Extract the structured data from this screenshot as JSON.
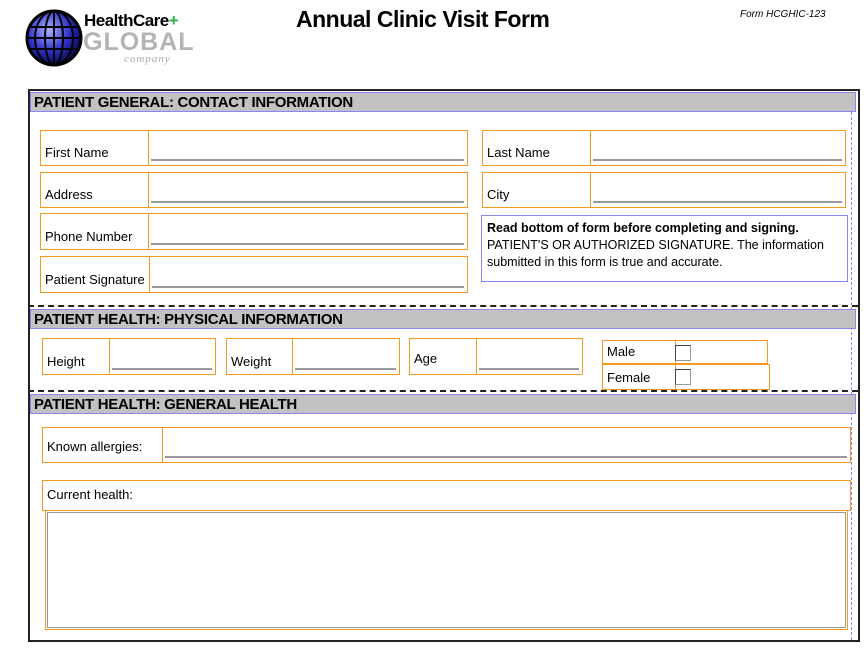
{
  "header": {
    "title": "Annual Clinic Visit Form",
    "form_number": "Form HCGHIC-123",
    "logo": {
      "line1": "HealthCare",
      "plus": "+",
      "line2": "GLOBAL",
      "line3": "company"
    }
  },
  "sections": {
    "contact": {
      "title": "PATIENT GENERAL: CONTACT INFORMATION",
      "first_name": "First Name",
      "last_name": "Last Name",
      "address": "Address",
      "city": "City",
      "phone": "Phone Number",
      "signature": "Patient Signature",
      "note_bold": "Read bottom of form before completing and signing.",
      "note_text": "PATIENT'S OR AUTHORIZED SIGNATURE. The information submitted in this form is true and accurate."
    },
    "physical": {
      "title": "PATIENT HEALTH:  PHYSICAL INFORMATION",
      "height": "Height",
      "weight": "Weight",
      "age": "Age",
      "male": "Male",
      "female": "Female",
      "male_checked": false,
      "female_checked": false
    },
    "general": {
      "title": "PATIENT HEALTH: GENERAL HEALTH",
      "allergies": "Known allergies:",
      "current_health": "Current health:"
    }
  },
  "colors": {
    "field_border": "#f59a1e",
    "section_bg": "#c2c2c2",
    "guide": "#8888ee"
  }
}
